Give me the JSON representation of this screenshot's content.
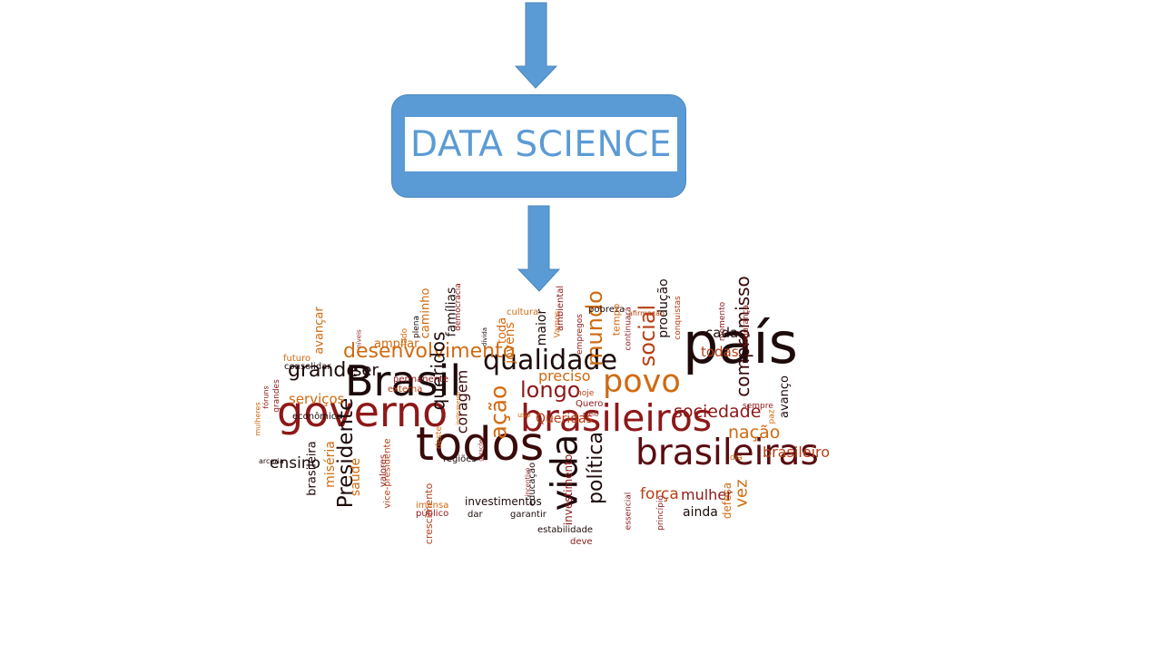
{
  "diagram": {
    "center_label": "DATA SCIENCE",
    "colors": {
      "box": "#5b9bd5",
      "arrow": "#5b9bd5",
      "label": "#5b9bd5"
    }
  },
  "word_cloud": {
    "palette": [
      "#1e0a0a",
      "#5a0d12",
      "#8e1818",
      "#b73f14",
      "#d06a12",
      "#e08d1f"
    ],
    "words": [
      {
        "text": "país",
        "color": "#1e0a0a"
      },
      {
        "text": "governo",
        "color": "#8e1818"
      },
      {
        "text": "todos",
        "color": "#3a0a0a"
      },
      {
        "text": "brasileiros",
        "color": "#8e1818"
      },
      {
        "text": "Brasil",
        "color": "#1e0a0a"
      },
      {
        "text": "brasileiras",
        "color": "#5a0d12"
      },
      {
        "text": "povo",
        "color": "#d06a12"
      },
      {
        "text": "qualidade",
        "color": "#1e0a0a"
      },
      {
        "text": "desenvolvimento",
        "color": "#d06a12"
      },
      {
        "text": "vida",
        "color": "#1e0a0a"
      },
      {
        "text": "Presidente",
        "color": "#1e0a0a"
      },
      {
        "text": "sociedade",
        "color": "#8e1818"
      },
      {
        "text": "grande",
        "color": "#1e0a0a"
      },
      {
        "text": "longo",
        "color": "#8e1818"
      },
      {
        "text": "ação",
        "color": "#d06a12"
      },
      {
        "text": "social",
        "color": "#b73f14"
      },
      {
        "text": "mundo",
        "color": "#d06a12"
      },
      {
        "text": "queridos",
        "color": "#1e0a0a"
      },
      {
        "text": "política",
        "color": "#1e0a0a"
      },
      {
        "text": "compromisso",
        "color": "#3a0a0a"
      },
      {
        "text": "nação",
        "color": "#d06a12"
      },
      {
        "text": "brasileiro",
        "color": "#b73f14"
      },
      {
        "text": "vez",
        "color": "#d06a12"
      },
      {
        "text": "força",
        "color": "#b73f14"
      },
      {
        "text": "mulher",
        "color": "#8e1818"
      },
      {
        "text": "ensino",
        "color": "#1e0a0a"
      },
      {
        "text": "ser",
        "color": "#1e0a0a"
      },
      {
        "text": "preciso",
        "color": "#d06a12"
      },
      {
        "text": "Queridas",
        "color": "#b73f14"
      },
      {
        "text": "coragem",
        "color": "#3a0a0a"
      },
      {
        "text": "jovens",
        "color": "#d06a12"
      },
      {
        "text": "serviços",
        "color": "#d06a12"
      },
      {
        "text": "saúde",
        "color": "#d06a12"
      },
      {
        "text": "miséria",
        "color": "#d06a12"
      },
      {
        "text": "brasileira",
        "color": "#1e0a0a"
      },
      {
        "text": "cada",
        "color": "#1e0a0a"
      },
      {
        "text": "todas",
        "color": "#b73f14"
      },
      {
        "text": "produção",
        "color": "#1e0a0a"
      },
      {
        "text": "famílias",
        "color": "#1e0a0a"
      },
      {
        "text": "caminho",
        "color": "#d06a12"
      },
      {
        "text": "avançar",
        "color": "#d06a12"
      },
      {
        "text": "ampliar",
        "color": "#d06a12"
      },
      {
        "text": "toda",
        "color": "#d06a12"
      },
      {
        "text": "maior",
        "color": "#1e0a0a"
      },
      {
        "text": "ainda",
        "color": "#1e0a0a"
      },
      {
        "text": "investimentos",
        "color": "#1e0a0a"
      },
      {
        "text": "crescimento",
        "color": "#b73f14"
      },
      {
        "text": "investimento",
        "color": "#8e1818"
      },
      {
        "text": "defesa",
        "color": "#d06a12"
      },
      {
        "text": "avanço",
        "color": "#1e0a0a"
      },
      {
        "text": "externa",
        "color": "#b73f14"
      },
      {
        "text": "permanente",
        "color": "#8e1818"
      },
      {
        "text": "consolidar",
        "color": "#1e0a0a"
      },
      {
        "text": "futuro",
        "color": "#d06a12"
      },
      {
        "text": "econômico",
        "color": "#1e0a0a"
      },
      {
        "text": "educação",
        "color": "#1e0a0a"
      },
      {
        "text": "valores",
        "color": "#8e1818"
      },
      {
        "text": "vice-presidente",
        "color": "#b73f14"
      },
      {
        "text": "imensa",
        "color": "#d06a12"
      },
      {
        "text": "público",
        "color": "#8e1818"
      },
      {
        "text": "regiões",
        "color": "#1e0a0a"
      },
      {
        "text": "dar",
        "color": "#1e0a0a"
      },
      {
        "text": "garantir",
        "color": "#1e0a0a"
      },
      {
        "text": "estabilidade",
        "color": "#1e0a0a"
      },
      {
        "text": "deve",
        "color": "#8e1818"
      },
      {
        "text": "essencial",
        "color": "#8e1818"
      },
      {
        "text": "princípio",
        "color": "#8e1818"
      },
      {
        "text": "dia",
        "color": "#d06a12"
      },
      {
        "text": "sempre",
        "color": "#8e1818"
      },
      {
        "text": "paz",
        "color": "#d06a12"
      },
      {
        "text": "continuará",
        "color": "#8e1818"
      },
      {
        "text": "conquistas",
        "color": "#b73f14"
      },
      {
        "text": "momento",
        "color": "#8e1818"
      },
      {
        "text": "segurança",
        "color": "#8e1818"
      },
      {
        "text": "pobreza",
        "color": "#1e0a0a"
      },
      {
        "text": "afirmação",
        "color": "#b73f14"
      },
      {
        "text": "cultura",
        "color": "#d06a12"
      },
      {
        "text": "Vamos",
        "color": "#d06a12"
      },
      {
        "text": "ambiental",
        "color": "#8e1818"
      },
      {
        "text": "empregos",
        "color": "#8e1818"
      },
      {
        "text": "tempo",
        "color": "#d06a12"
      },
      {
        "text": "democracia",
        "color": "#8e1818"
      },
      {
        "text": "dívida",
        "color": "#1e0a0a"
      },
      {
        "text": "plena",
        "color": "#1e0a0a"
      },
      {
        "text": "lado",
        "color": "#d06a12"
      },
      {
        "text": "níveis",
        "color": "#8e1818"
      },
      {
        "text": "mulheres",
        "color": "#d06a12"
      },
      {
        "text": "fóruns",
        "color": "#8e1818"
      },
      {
        "text": "grandes",
        "color": "#8e1818"
      },
      {
        "text": "arceria",
        "color": "#1e0a0a"
      },
      {
        "text": "hoje",
        "color": "#b73f14"
      },
      {
        "text": "Quero",
        "color": "#8e1818"
      },
      {
        "text": "meio",
        "color": "#8e1818"
      },
      {
        "text": "instrumento",
        "color": "#d06a12"
      },
      {
        "text": "uso",
        "color": "#d06a12"
      },
      {
        "text": "deste",
        "color": "#d06a12"
      },
      {
        "text": "incentivo",
        "color": "#8e1818"
      },
      {
        "text": "gerações",
        "color": "#8e1818"
      }
    ]
  }
}
